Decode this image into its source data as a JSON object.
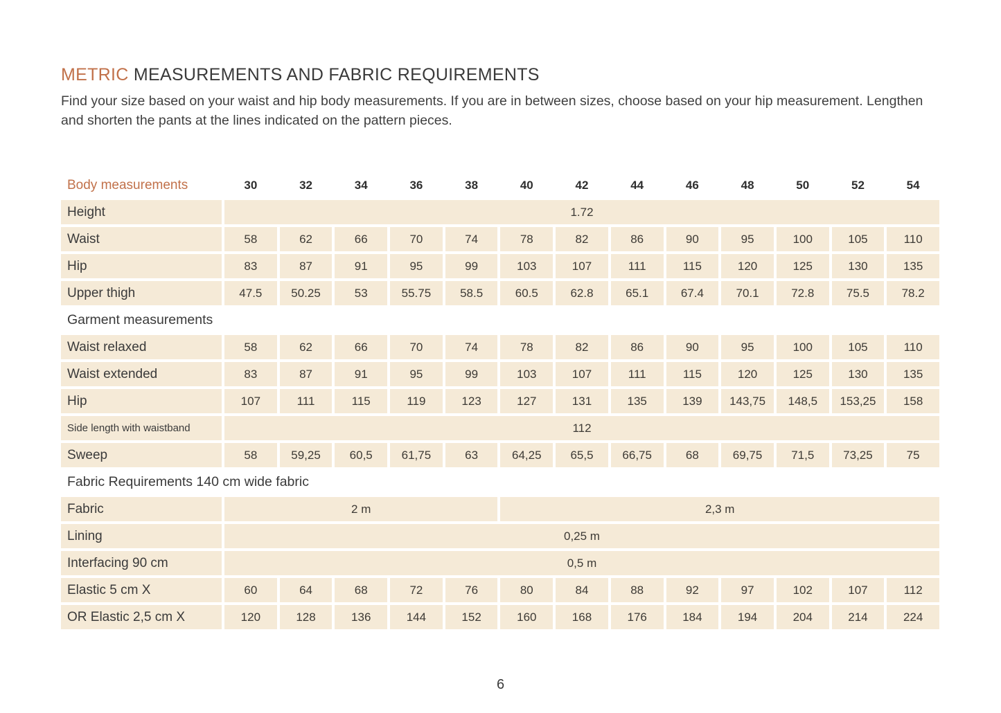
{
  "page": {
    "title_accent": "METRIC",
    "title_rest": " MEASUREMENTS AND FABRIC REQUIREMENTS",
    "intro": "Find your size based on your waist and hip body measurements. If you are in between sizes, choose based on your hip measurement. Lengthen and shorten the pants at the lines indicated on the pattern pieces.",
    "page_number": "6"
  },
  "colors": {
    "accent": "#c1714a",
    "cell_bg": "#f5ead7",
    "text": "#3a3a3a"
  },
  "table": {
    "header": {
      "label": "Body measurements",
      "sizes": [
        "30",
        "32",
        "34",
        "36",
        "38",
        "40",
        "42",
        "44",
        "46",
        "48",
        "50",
        "52",
        "54"
      ]
    },
    "rows": [
      {
        "type": "span",
        "label": "Height",
        "value": "1.72"
      },
      {
        "type": "cells",
        "label": "Waist",
        "values": [
          "58",
          "62",
          "66",
          "70",
          "74",
          "78",
          "82",
          "86",
          "90",
          "95",
          "100",
          "105",
          "110"
        ]
      },
      {
        "type": "cells",
        "label": "Hip",
        "values": [
          "83",
          "87",
          "91",
          "95",
          "99",
          "103",
          "107",
          "111",
          "115",
          "120",
          "125",
          "130",
          "135"
        ]
      },
      {
        "type": "cells",
        "label": "Upper thigh",
        "values": [
          "47.5",
          "50.25",
          "53",
          "55.75",
          "58.5",
          "60.5",
          "62.8",
          "65.1",
          "67.4",
          "70.1",
          "72.8",
          "75.5",
          "78.2"
        ]
      },
      {
        "type": "section",
        "label": "Garment measurements"
      },
      {
        "type": "cells",
        "label": "Waist relaxed",
        "values": [
          "58",
          "62",
          "66",
          "70",
          "74",
          "78",
          "82",
          "86",
          "90",
          "95",
          "100",
          "105",
          "110"
        ]
      },
      {
        "type": "cells",
        "label": "Waist extended",
        "values": [
          "83",
          "87",
          "91",
          "95",
          "99",
          "103",
          "107",
          "111",
          "115",
          "120",
          "125",
          "130",
          "135"
        ]
      },
      {
        "type": "cells",
        "label": "Hip",
        "values": [
          "107",
          "111",
          "115",
          "119",
          "123",
          "127",
          "131",
          "135",
          "139",
          "143,75",
          "148,5",
          "153,25",
          "158"
        ]
      },
      {
        "type": "span",
        "label": "Side length with waistband",
        "value": "112",
        "small": true
      },
      {
        "type": "cells",
        "label": "Sweep",
        "values": [
          "58",
          "59,25",
          "60,5",
          "61,75",
          "63",
          "64,25",
          "65,5",
          "66,75",
          "68",
          "69,75",
          "71,5",
          "73,25",
          "75"
        ]
      },
      {
        "type": "section",
        "label": "Fabric Requirements 140 cm wide fabric"
      },
      {
        "type": "multispan",
        "label": "Fabric",
        "spans": [
          {
            "cols": 5,
            "value": "2 m"
          },
          {
            "cols": 8,
            "value": "2,3 m"
          }
        ]
      },
      {
        "type": "span",
        "label": "Lining",
        "value": "0,25 m"
      },
      {
        "type": "span",
        "label": "Interfacing 90 cm",
        "value": "0,5 m"
      },
      {
        "type": "cells",
        "label": "Elastic 5 cm X",
        "values": [
          "60",
          "64",
          "68",
          "72",
          "76",
          "80",
          "84",
          "88",
          "92",
          "97",
          "102",
          "107",
          "112"
        ]
      },
      {
        "type": "cells",
        "label": "OR Elastic 2,5 cm X",
        "values": [
          "120",
          "128",
          "136",
          "144",
          "152",
          "160",
          "168",
          "176",
          "184",
          "194",
          "204",
          "214",
          "224"
        ]
      }
    ]
  }
}
